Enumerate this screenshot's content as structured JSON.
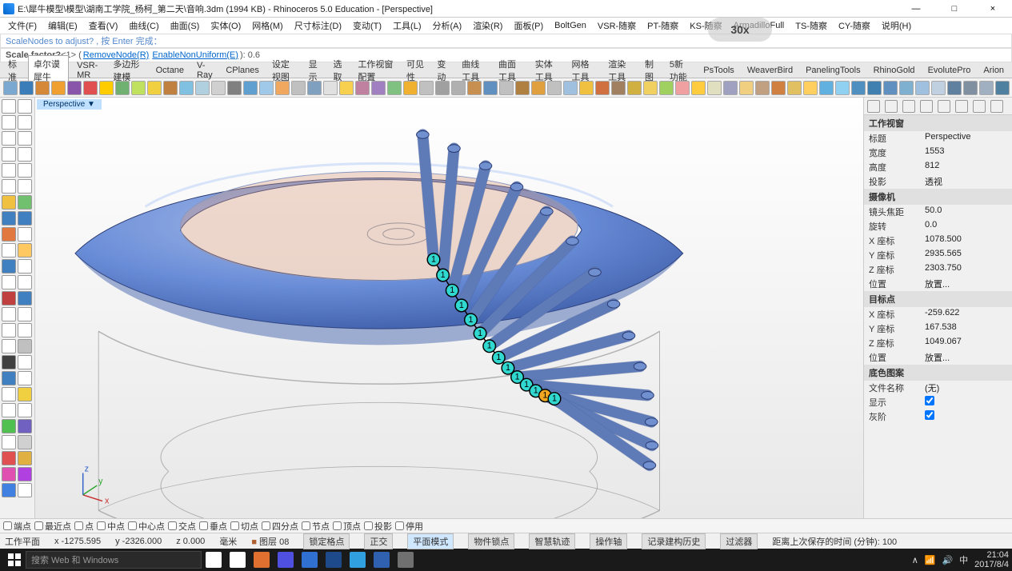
{
  "window": {
    "title": "E:\\犀牛模型\\模型\\湖南工学院_杨柯_第二天\\音响.3dm (1994 KB) - Rhinoceros 5.0 Education - [Perspective]",
    "minimize": "—",
    "maximize": "□",
    "close": "×"
  },
  "menu": [
    "文件(F)",
    "编辑(E)",
    "查看(V)",
    "曲线(C)",
    "曲面(S)",
    "实体(O)",
    "网格(M)",
    "尺寸标注(D)",
    "变动(T)",
    "工具(L)",
    "分析(A)",
    "渲染(R)",
    "面板(P)",
    "BoltGen",
    "VSR-随察",
    "PT-随察",
    "KS-随察",
    "ArmadilloFull",
    "TS-随察",
    "CY-随察",
    "说明(H)"
  ],
  "cmd1": {
    "prefix": "ScaleNodes to adjust? , 按 Enter 完成：",
    "color": "#5588cc"
  },
  "cmd2": {
    "prefix": "Scale factor? ",
    "opt1": "<1>",
    "link1": "RemoveNode(R)",
    "link2": "EnableNonUniform(E)",
    "suffix": "): 0.6"
  },
  "tabs": [
    "标准",
    "卓尔谟犀牛",
    "VSR-MR",
    "多边形建模",
    "Octane",
    "V-Ray",
    "CPlanes",
    "设定视图",
    "显示",
    "选取",
    "工作视窗配置",
    "可见性",
    "变动",
    "曲线工具",
    "曲面工具",
    "实体工具",
    "网格工具",
    "渲染工具",
    "制图",
    "5新功能",
    "PsTools",
    "WeaverBird",
    "PanelingTools",
    "RhinoGold",
    "EvolutePro",
    "Arion"
  ],
  "toolbar_colors": [
    "#7aa8d0",
    "#3b7db8",
    "#d48838",
    "#f0a030",
    "#8855aa",
    "#e05050",
    "#ffcc00",
    "#70b070",
    "#c0e060",
    "#f0d040",
    "#c08040",
    "#80c0e0",
    "#b0d0e0",
    "#d0d0d0",
    "#808080",
    "#60a0d0",
    "#a0c8e8",
    "#f0a860",
    "#c0c0c0",
    "#80a0c0",
    "#e0e0e0",
    "#f8d050",
    "#c080a0",
    "#a080c0",
    "#80c080",
    "#f0b030",
    "#c0c0c0",
    "#a0a0a0",
    "#b0b0b0",
    "#c89050",
    "#6090c0",
    "#c0c0c0",
    "#b08040",
    "#e0a040",
    "#c0c0c0",
    "#a0c0e0",
    "#f0c040",
    "#d07040",
    "#a08060",
    "#d0b040",
    "#f0d060",
    "#a0d060",
    "#f0a0a0",
    "#ffcc40",
    "#e0e0c0",
    "#a0a0c0",
    "#f0d080",
    "#c0a080",
    "#d08040",
    "#e0c060",
    "#ffd060",
    "#60b0e0",
    "#90d0f0",
    "#5090c0",
    "#4080b0",
    "#6090c0",
    "#80b0d0",
    "#a0c0e0",
    "#c0d0e0",
    "#6080a0",
    "#8090a0",
    "#a0b0c0",
    "#5080a0"
  ],
  "left_tool_colors": [
    "#fff",
    "#fff",
    "#fff",
    "#fff",
    "#fff",
    "#fff",
    "#fff",
    "#fff",
    "#fff",
    "#fff",
    "#fff",
    "#fff",
    "#f0c040",
    "#70c070",
    "#4080c0",
    "#4080c0",
    "#e07840",
    "#fff",
    "#fff",
    "#ffc860",
    "#4080c0",
    "#fff",
    "#fff",
    "#fff",
    "#c04040",
    "#4080c0",
    "#fff",
    "#fff",
    "#fff",
    "#fff",
    "#fff",
    "#c0c0c0",
    "#404040",
    "#fff",
    "#4080c0",
    "#fff",
    "#fff",
    "#f0d040",
    "#fff",
    "#fff",
    "#50c050",
    "#7060c0",
    "#fff",
    "#d0d0d0",
    "#e05050",
    "#e0b040",
    "#e050b0",
    "#b040e0",
    "#4080e0",
    "#fff"
  ],
  "viewport": {
    "label": "Perspective ▼",
    "torus_color": "#6a8dd8",
    "torus_highlight": "#a8bce8",
    "torus_shadow": "#4565b0",
    "inner_color": "#d89878",
    "wireframe_color": "#888888",
    "tube_color": "#7090d0",
    "node_color": "#30d8d0",
    "node_selected_color": "#f0a820",
    "node_border": "#000000",
    "axis_x": "#c83030",
    "axis_y": "#30a830",
    "axis_z": "#3060c8"
  },
  "panel": {
    "section1": "工作视窗",
    "rows1": [
      {
        "label": "标题",
        "value": "Perspective"
      },
      {
        "label": "宽度",
        "value": "1553"
      },
      {
        "label": "高度",
        "value": "812"
      },
      {
        "label": "投影",
        "value": "透视"
      }
    ],
    "section2": "摄像机",
    "rows2": [
      {
        "label": "镜头焦距",
        "value": "50.0"
      },
      {
        "label": "旋转",
        "value": "0.0"
      },
      {
        "label": "X 座标",
        "value": "1078.500"
      },
      {
        "label": "Y 座标",
        "value": "2935.565"
      },
      {
        "label": "Z 座标",
        "value": "2303.750"
      },
      {
        "label": "位置",
        "value": "放置..."
      }
    ],
    "section3": "目标点",
    "rows3": [
      {
        "label": "X 座标",
        "value": "-259.622"
      },
      {
        "label": "Y 座标",
        "value": "167.538"
      },
      {
        "label": "Z 座标",
        "value": "1049.067"
      },
      {
        "label": "位置",
        "value": "放置..."
      }
    ],
    "section4": "底色图案",
    "rows4": [
      {
        "label": "文件名称",
        "value": "(无)"
      },
      {
        "label": "显示",
        "value": "",
        "checkbox": true
      },
      {
        "label": "灰阶",
        "value": "",
        "checkbox": true
      }
    ]
  },
  "osnap": [
    "端点",
    "最近点",
    "点",
    "中点",
    "中心点",
    "交点",
    "垂点",
    "切点",
    "四分点",
    "节点",
    "顶点",
    "投影",
    "停用"
  ],
  "status": {
    "plane": "工作平面",
    "x": "x -1275.595",
    "y": "y -2326.000",
    "z": "z 0.000",
    "unit": "毫米",
    "layer_icon": "■",
    "layer": "图层 08",
    "btns": [
      "锁定格点",
      "正交",
      "平面模式",
      "物件锁点",
      "智慧轨迹",
      "操作轴",
      "记录建构历史",
      "过滤器"
    ],
    "active_btn": 2,
    "autosave": "距离上次保存的时间 (分钟): 100"
  },
  "taskbar": {
    "search_placeholder": "搜索 Web 和 Windows",
    "time": "21:04",
    "date": "2017/8/4",
    "ime": "中",
    "task_colors": [
      "#fff",
      "#fff",
      "#e07030",
      "#5050e0",
      "#3070d0",
      "#1e4a8c",
      "#30a0e0",
      "#3060b0",
      "#707070"
    ]
  },
  "speed_indicator": "30x"
}
